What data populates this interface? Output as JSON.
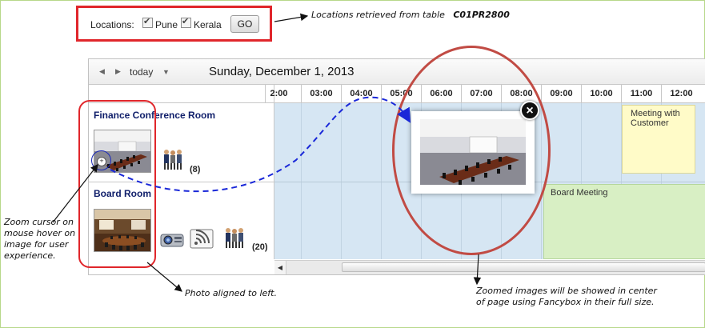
{
  "locations": {
    "label": "Locations:",
    "options": [
      {
        "label": "Pune",
        "checked": true
      },
      {
        "label": "Kerala",
        "checked": true
      }
    ],
    "go_label": "GO"
  },
  "annotations": {
    "locations_note_prefix": "Locations retrieved from table",
    "locations_note_table": "C01PR2800",
    "zoom_note": [
      "Zoom cursor on",
      "mouse hover on",
      "image for user",
      "experience."
    ],
    "photo_note": "Photo aligned to left.",
    "fancybox_note": [
      "Zoomed images will be showed in center",
      "of page using Fancybox in their full size."
    ]
  },
  "toolbar": {
    "prev_icon": "prev-arrow-icon",
    "next_icon": "next-arrow-icon",
    "today_label": "today",
    "dropdown_icon": "dropdown-arrow-icon",
    "date_title": "Sunday, December 1, 2013"
  },
  "timeline": {
    "ticks": [
      "2:00",
      "03:00",
      "04:00",
      "05:00",
      "06:00",
      "07:00",
      "08:00",
      "09:00",
      "10:00",
      "11:00",
      "12:00"
    ]
  },
  "rooms": [
    {
      "name": "Finance Conference Room",
      "capacity": "(8)",
      "amenity_icons": [
        "people-icon"
      ]
    },
    {
      "name": "Board Room",
      "capacity": "(20)",
      "amenity_icons": [
        "projector-icon",
        "wifi-icon",
        "people-icon"
      ]
    }
  ],
  "events": [
    {
      "title": "Meeting with Customer",
      "room": "Finance Conference Room",
      "color": "#fffbc8"
    },
    {
      "title": "Board Meeting",
      "room": "Board Room",
      "color": "#d8efc4"
    }
  ],
  "colors": {
    "highlight_red": "#e0262b",
    "grid_blue": "#d6e6f3",
    "room_name": "#0f1e6a",
    "arrow_blue": "#1a28d8"
  }
}
